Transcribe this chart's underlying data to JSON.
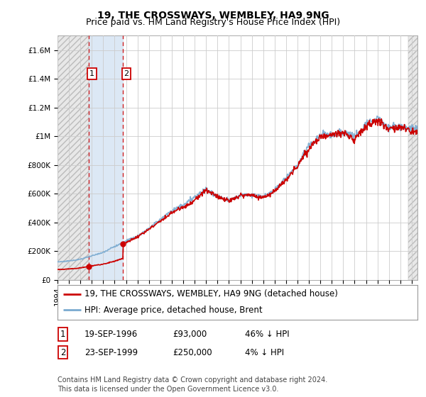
{
  "title": "19, THE CROSSWAYS, WEMBLEY, HA9 9NG",
  "subtitle": "Price paid vs. HM Land Registry's House Price Index (HPI)",
  "ylim": [
    0,
    1700000
  ],
  "yticks": [
    0,
    200000,
    400000,
    600000,
    800000,
    1000000,
    1200000,
    1400000,
    1600000
  ],
  "ytick_labels": [
    "£0",
    "£200K",
    "£400K",
    "£600K",
    "£800K",
    "£1M",
    "£1.2M",
    "£1.4M",
    "£1.6M"
  ],
  "grid_color": "#cccccc",
  "background_color": "#ffffff",
  "hpi_color": "#7aaad0",
  "price_color": "#cc0000",
  "purchase1_date": 1996.72,
  "purchase1_price": 93000,
  "purchase1_label": "1",
  "purchase2_date": 1999.72,
  "purchase2_price": 250000,
  "purchase2_label": "2",
  "vline1_x": 1996.72,
  "vline2_x": 1999.72,
  "xmin": 1994.0,
  "xmax": 2025.5,
  "legend_label1": "19, THE CROSSWAYS, WEMBLEY, HA9 9NG (detached house)",
  "legend_label2": "HPI: Average price, detached house, Brent",
  "table_row1": [
    "1",
    "19-SEP-1996",
    "£93,000",
    "46% ↓ HPI"
  ],
  "table_row2": [
    "2",
    "23-SEP-1999",
    "£250,000",
    "4% ↓ HPI"
  ],
  "footer": "Contains HM Land Registry data © Crown copyright and database right 2024.\nThis data is licensed under the Open Government Licence v3.0.",
  "title_fontsize": 10,
  "subtitle_fontsize": 9,
  "tick_fontsize": 7.5,
  "legend_fontsize": 8.5,
  "table_fontsize": 8.5,
  "footer_fontsize": 7
}
